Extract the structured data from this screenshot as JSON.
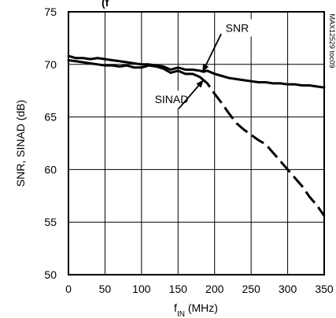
{
  "chart_data": {
    "type": "line",
    "title": "",
    "header_fragment": "(f",
    "xlabel": {
      "base": "f",
      "subscript": "IN",
      "unit": " (MHz)"
    },
    "ylabel": "SNR, SINAD (dB)",
    "figure_code": "MAX12529 toc09",
    "xlim": [
      0,
      350
    ],
    "ylim": [
      50,
      75
    ],
    "xticks": [
      0,
      50,
      100,
      150,
      200,
      250,
      300,
      350
    ],
    "yticks": [
      50,
      55,
      60,
      65,
      70,
      75
    ],
    "grid": true,
    "series": [
      {
        "name": "SNR",
        "style": "solid",
        "color": "#000000",
        "x": [
          0,
          10,
          20,
          30,
          40,
          50,
          60,
          70,
          80,
          90,
          100,
          110,
          120,
          130,
          140,
          150,
          160,
          170,
          180,
          185,
          190,
          200,
          210,
          220,
          230,
          240,
          250,
          260,
          270,
          280,
          290,
          300,
          310,
          320,
          330,
          340,
          350
        ],
        "y": [
          70.8,
          70.6,
          70.6,
          70.5,
          70.6,
          70.5,
          70.4,
          70.3,
          70.2,
          70.1,
          70.0,
          70.0,
          69.9,
          69.8,
          69.5,
          69.7,
          69.5,
          69.5,
          69.4,
          69.3,
          69.4,
          69.1,
          68.9,
          68.7,
          68.6,
          68.5,
          68.4,
          68.3,
          68.3,
          68.2,
          68.2,
          68.1,
          68.1,
          68.0,
          68.0,
          67.9,
          67.8
        ]
      },
      {
        "name": "SINAD",
        "style": "mixed",
        "color": "#000000",
        "dash_from_x": 180,
        "x": [
          0,
          10,
          20,
          30,
          40,
          50,
          60,
          70,
          80,
          90,
          100,
          110,
          120,
          130,
          140,
          150,
          160,
          170,
          180,
          190,
          200,
          210,
          220,
          230,
          240,
          250,
          260,
          270,
          280,
          290,
          300,
          310,
          320,
          330,
          340,
          350
        ],
        "y": [
          70.4,
          70.3,
          70.2,
          70.1,
          70.0,
          69.9,
          69.9,
          69.8,
          69.9,
          69.7,
          69.7,
          69.9,
          69.8,
          69.6,
          69.2,
          69.4,
          69.1,
          69.1,
          68.8,
          68.2,
          67.2,
          66.3,
          65.3,
          64.4,
          63.8,
          63.3,
          62.8,
          62.4,
          61.6,
          60.8,
          60.0,
          59.2,
          58.4,
          57.4,
          56.6,
          55.6
        ]
      }
    ],
    "annotations": [
      {
        "text": "SNR",
        "series": "SNR",
        "text_anchor_data": [
          215,
          73.1
        ],
        "arrow_from_data": [
          209,
          72.9
        ],
        "arrow_to_data": [
          184,
          69.35
        ]
      },
      {
        "text": "SINAD",
        "series": "SINAD",
        "text_anchor_data": [
          118,
          66.3
        ],
        "arrow_from_data": [
          151,
          65.8
        ],
        "arrow_to_data": [
          184,
          68.45
        ]
      }
    ]
  }
}
